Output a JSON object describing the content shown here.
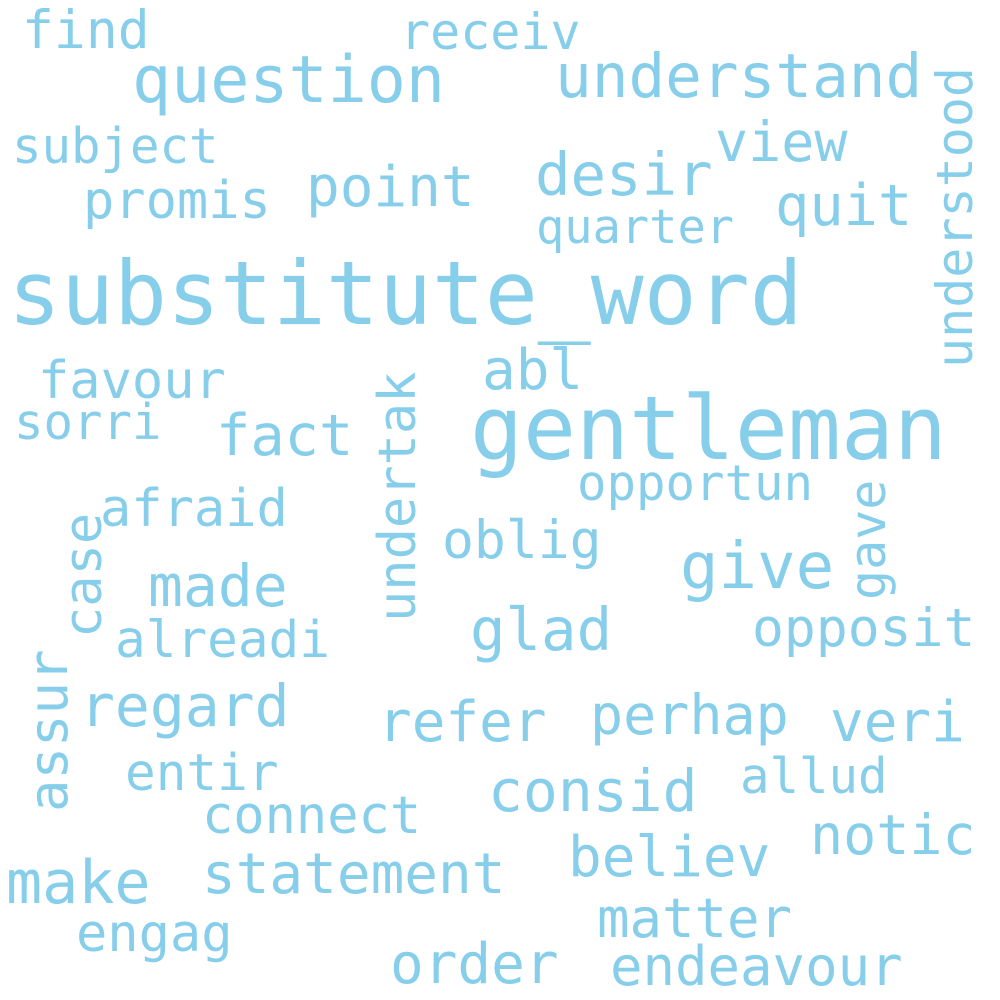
{
  "cloud": {
    "color": "#87CEEB",
    "words": {
      "substitute_word": "substitute_word",
      "gentleman": "gentleman",
      "question": "question",
      "understand": "understand",
      "understood": "understood",
      "find": "find",
      "receiv": "receiv",
      "subject": "subject",
      "view": "view",
      "desir": "desir",
      "point": "point",
      "promis": "promis",
      "quit": "quit",
      "quarter": "quarter",
      "abl": "abl",
      "favour": "favour",
      "sorri": "sorri",
      "fact": "fact",
      "undertak": "undertak",
      "opportun": "opportun",
      "afraid": "afraid",
      "case": "case",
      "oblig": "oblig",
      "give": "give",
      "gave": "gave",
      "made": "made",
      "alreadi": "alreadi",
      "glad": "glad",
      "opposit": "opposit",
      "assur": "assur",
      "regard": "regard",
      "refer": "refer",
      "perhap": "perhap",
      "veri": "veri",
      "entir": "entir",
      "allud": "allud",
      "consid": "consid",
      "connect": "connect",
      "notic": "notic",
      "make": "make",
      "statement": "statement",
      "believ": "believ",
      "matter": "matter",
      "engag": "engag",
      "order": "order",
      "endeavour": "endeavour"
    }
  }
}
